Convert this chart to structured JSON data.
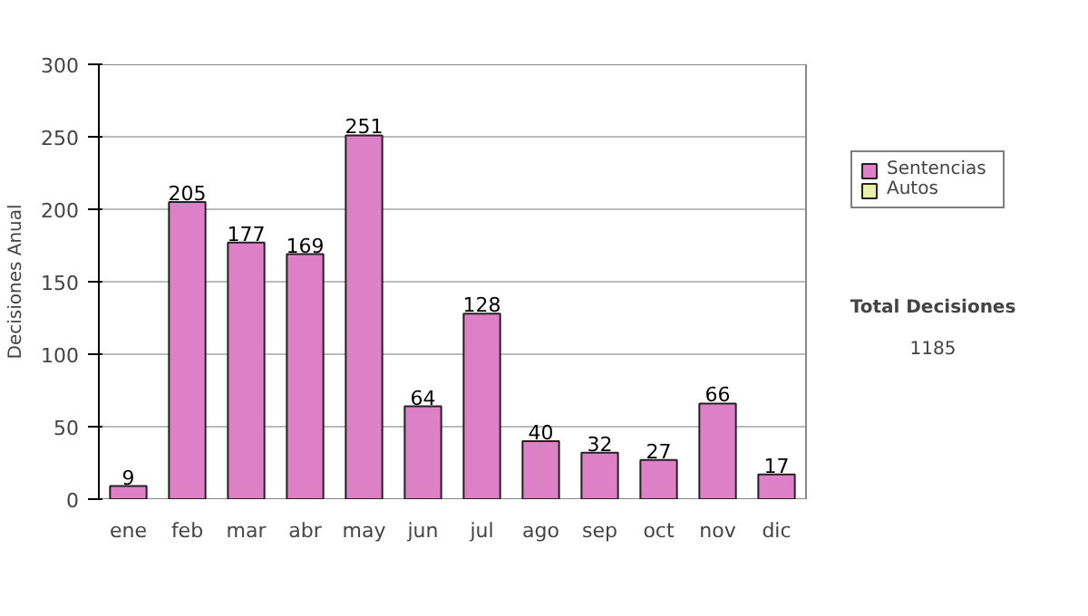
{
  "chart_data": {
    "type": "bar",
    "ylabel": "Decisiones Anual",
    "categories": [
      "ene",
      "feb",
      "mar",
      "abr",
      "may",
      "jun",
      "jul",
      "ago",
      "sep",
      "oct",
      "nov",
      "dic"
    ],
    "series": [
      {
        "name": "Sentencias",
        "color": "#dd80c6",
        "values": [
          9,
          205,
          177,
          169,
          251,
          64,
          128,
          40,
          32,
          27,
          66,
          17
        ]
      },
      {
        "name": "Autos",
        "color": "#e8f0a8",
        "values": [
          null,
          null,
          null,
          null,
          null,
          null,
          null,
          null,
          null,
          null,
          null,
          null
        ]
      }
    ],
    "ylim": [
      0,
      300
    ],
    "yticks": [
      0,
      50,
      100,
      150,
      200,
      250,
      300
    ],
    "grid": "y",
    "legend": "right",
    "data_labels": true,
    "annotations": [
      "Total Decisiones",
      "1185"
    ]
  }
}
